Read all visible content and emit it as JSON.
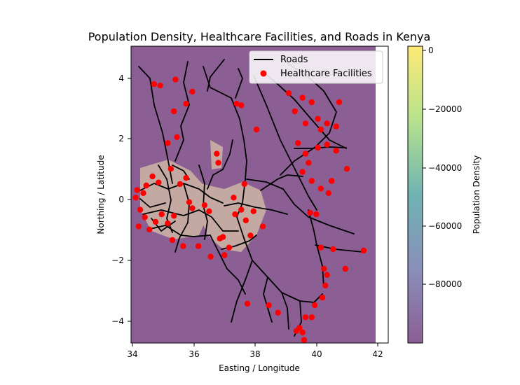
{
  "title": "Population Density, Healthcare Facilities, and Roads in Kenya",
  "xlabel": "Easting / Longitude",
  "ylabel": "Northing / Latitude",
  "colorbar_label": "Population Density",
  "legend": {
    "roads": "Roads",
    "facilities": "Healthcare Facilities"
  },
  "colors": {
    "background": "#8b5e94",
    "road": "#000000",
    "facility": "#ff0000",
    "built_up": "#d7c3a8"
  },
  "chart_data": {
    "type": "map",
    "xlim": [
      33.9,
      42.3
    ],
    "ylim": [
      -4.75,
      5.05
    ],
    "x_ticks": [
      "34",
      "36",
      "38",
      "40",
      "42"
    ],
    "y_ticks": [
      "4",
      "2",
      "0",
      "−2",
      "−4"
    ],
    "colorbar": {
      "range": [
        -98000,
        1500
      ],
      "colormap": "viridis",
      "ticks": [
        "0",
        "−20000",
        "−40000",
        "−60000",
        "−80000"
      ]
    },
    "legend_position": "top-right",
    "grid": false,
    "facilities": [
      [
        34.65,
        3.8
      ],
      [
        34.85,
        3.75
      ],
      [
        35.35,
        3.95
      ],
      [
        35.9,
        3.55
      ],
      [
        35.3,
        2.9
      ],
      [
        35.7,
        3.15
      ],
      [
        35.4,
        2.05
      ],
      [
        35.1,
        1.85
      ],
      [
        34.6,
        0.75
      ],
      [
        34.8,
        0.55
      ],
      [
        34.4,
        0.45
      ],
      [
        34.3,
        0.2
      ],
      [
        34.1,
        0.3
      ],
      [
        34.05,
        0.05
      ],
      [
        34.2,
        -0.35
      ],
      [
        34.35,
        -0.6
      ],
      [
        34.15,
        -0.9
      ],
      [
        34.5,
        -1.0
      ],
      [
        34.7,
        -0.75
      ],
      [
        34.9,
        -0.5
      ],
      [
        35.1,
        -0.8
      ],
      [
        35.3,
        -0.55
      ],
      [
        35.25,
        -1.35
      ],
      [
        35.6,
        -1.55
      ],
      [
        35.9,
        -0.3
      ],
      [
        36.1,
        -1.55
      ],
      [
        35.8,
        -0.1
      ],
      [
        35.5,
        0.5
      ],
      [
        35.7,
        0.7
      ],
      [
        35.2,
        1.0
      ],
      [
        36.5,
        -1.9
      ],
      [
        36.8,
        -1.3
      ],
      [
        36.9,
        -1.25
      ],
      [
        37.1,
        -1.6
      ],
      [
        36.95,
        -1.85
      ],
      [
        37.3,
        -0.5
      ],
      [
        37.5,
        -0.35
      ],
      [
        37.65,
        -0.7
      ],
      [
        37.9,
        -0.4
      ],
      [
        38.2,
        -0.9
      ],
      [
        37.8,
        -1.2
      ],
      [
        37.6,
        0.5
      ],
      [
        37.25,
        0.05
      ],
      [
        36.3,
        -0.2
      ],
      [
        36.45,
        -0.4
      ],
      [
        36.7,
        1.5
      ],
      [
        36.75,
        1.2
      ],
      [
        37.35,
        3.15
      ],
      [
        37.5,
        3.1
      ],
      [
        38.0,
        2.3
      ],
      [
        39.05,
        3.5
      ],
      [
        39.5,
        3.35
      ],
      [
        39.25,
        2.9
      ],
      [
        39.8,
        3.2
      ],
      [
        39.6,
        2.5
      ],
      [
        40.0,
        2.65
      ],
      [
        40.3,
        2.5
      ],
      [
        40.1,
        2.3
      ],
      [
        40.6,
        2.4
      ],
      [
        40.7,
        3.2
      ],
      [
        39.35,
        1.85
      ],
      [
        39.6,
        1.5
      ],
      [
        39.7,
        1.2
      ],
      [
        39.5,
        0.9
      ],
      [
        40.0,
        1.7
      ],
      [
        40.3,
        1.8
      ],
      [
        40.6,
        1.6
      ],
      [
        40.95,
        1.0
      ],
      [
        40.1,
        0.35
      ],
      [
        40.35,
        0.2
      ],
      [
        40.45,
        0.6
      ],
      [
        39.8,
        0.6
      ],
      [
        39.75,
        -0.45
      ],
      [
        39.95,
        -0.5
      ],
      [
        40.1,
        -1.6
      ],
      [
        40.5,
        -1.65
      ],
      [
        40.2,
        -2.3
      ],
      [
        40.3,
        -2.5
      ],
      [
        40.25,
        -2.85
      ],
      [
        40.15,
        -3.25
      ],
      [
        39.9,
        -3.5
      ],
      [
        39.8,
        -3.9
      ],
      [
        39.6,
        -3.9
      ],
      [
        39.4,
        -4.25
      ],
      [
        39.5,
        -4.4
      ],
      [
        39.3,
        -4.35
      ],
      [
        39.55,
        -4.65
      ],
      [
        38.4,
        -3.5
      ],
      [
        37.7,
        -3.45
      ],
      [
        38.7,
        -3.75
      ],
      [
        40.9,
        -2.3
      ],
      [
        41.5,
        -1.7
      ]
    ]
  }
}
